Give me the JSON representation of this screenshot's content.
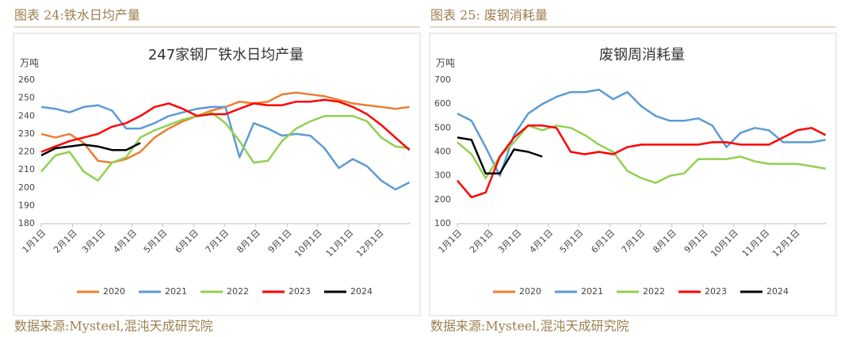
{
  "chart_data": [
    {
      "type": "line",
      "caption": "图表 24:铁水日均产量",
      "source": "数据来源:Mysteel,混沌天成研究院",
      "title": "247家钢厂铁水日均产量",
      "y_unit": "万吨",
      "grid": false,
      "x": [
        1,
        15,
        29,
        43,
        57,
        71,
        85,
        99,
        113,
        127,
        141,
        155,
        169,
        183,
        197,
        211,
        225,
        239,
        253,
        267,
        281,
        295,
        309,
        323,
        337,
        351,
        365
      ],
      "xlim": [
        1,
        366
      ],
      "xticks": [
        {
          "value": 1,
          "label": "1月1日"
        },
        {
          "value": 32,
          "label": "2月1日"
        },
        {
          "value": 60,
          "label": "3月1日"
        },
        {
          "value": 91,
          "label": "4月1日"
        },
        {
          "value": 121,
          "label": "5月1日"
        },
        {
          "value": 152,
          "label": "6月1日"
        },
        {
          "value": 182,
          "label": "7月1日"
        },
        {
          "value": 213,
          "label": "8月1日"
        },
        {
          "value": 244,
          "label": "9月1日"
        },
        {
          "value": 274,
          "label": "10月1日"
        },
        {
          "value": 305,
          "label": "11月1日"
        },
        {
          "value": 335,
          "label": "12月1日"
        }
      ],
      "ylim": [
        180,
        260
      ],
      "yticks": [
        180,
        190,
        200,
        210,
        220,
        230,
        240,
        250,
        260
      ],
      "series": [
        {
          "name": "2020",
          "color": "#ed7d31",
          "values": [
            230,
            228,
            230,
            225,
            215,
            214,
            216,
            220,
            228,
            233,
            237,
            240,
            243,
            245,
            248,
            247,
            248,
            252,
            253,
            252,
            251,
            249,
            247,
            246,
            245,
            244,
            245
          ]
        },
        {
          "name": "2021",
          "color": "#5b9bd5",
          "values": [
            245,
            244,
            242,
            245,
            246,
            243,
            233,
            233,
            236,
            240,
            242,
            244,
            245,
            245,
            217,
            236,
            233,
            229,
            230,
            229,
            222,
            211,
            216,
            212,
            204,
            199,
            203
          ]
        },
        {
          "name": "2022",
          "color": "#92d050",
          "values": [
            209,
            218,
            220,
            209,
            204,
            214,
            217,
            228,
            232,
            235,
            238,
            240,
            242,
            236,
            226,
            214,
            215,
            226,
            233,
            237,
            240,
            240,
            240,
            237,
            228,
            223,
            222
          ]
        },
        {
          "name": "2023",
          "color": "#ff0000",
          "values": [
            220,
            223,
            226,
            228,
            230,
            234,
            236,
            240,
            245,
            247,
            244,
            240,
            241,
            241,
            244,
            247,
            246,
            246,
            248,
            248,
            249,
            248,
            245,
            241,
            235,
            228,
            221
          ]
        },
        {
          "name": "2024",
          "color": "#000000",
          "values": [
            218,
            222,
            223,
            224,
            223,
            221,
            221,
            225,
            null,
            null,
            null,
            null,
            null,
            null,
            null,
            null,
            null,
            null,
            null,
            null,
            null,
            null,
            null,
            null,
            null,
            null,
            null
          ]
        }
      ]
    },
    {
      "type": "line",
      "caption": "图表 25: 废钢消耗量",
      "source": "数据来源:Mysteel,混沌天成研究院",
      "title": "废钢周消耗量",
      "y_unit": "万吨",
      "grid": false,
      "x": [
        1,
        15,
        29,
        43,
        57,
        71,
        85,
        99,
        113,
        127,
        141,
        155,
        169,
        183,
        197,
        211,
        225,
        239,
        253,
        267,
        281,
        295,
        309,
        323,
        337,
        351,
        365
      ],
      "xlim": [
        1,
        366
      ],
      "xticks": [
        {
          "value": 1,
          "label": "1月1日"
        },
        {
          "value": 32,
          "label": "2月1日"
        },
        {
          "value": 60,
          "label": "3月1日"
        },
        {
          "value": 91,
          "label": "4月1日"
        },
        {
          "value": 121,
          "label": "5月1日"
        },
        {
          "value": 152,
          "label": "6月1日"
        },
        {
          "value": 182,
          "label": "7月1日"
        },
        {
          "value": 213,
          "label": "8月1日"
        },
        {
          "value": 244,
          "label": "9月1日"
        },
        {
          "value": 274,
          "label": "10月1日"
        },
        {
          "value": 305,
          "label": "11月1日"
        },
        {
          "value": 335,
          "label": "12月1日"
        }
      ],
      "ylim": [
        100,
        700
      ],
      "yticks": [
        100,
        200,
        300,
        400,
        500,
        600,
        700
      ],
      "series": [
        {
          "name": "2020",
          "color": "#ed7d31",
          "values": [
            null,
            null,
            null,
            null,
            null,
            null,
            null,
            null,
            null,
            null,
            null,
            null,
            null,
            null,
            null,
            null,
            null,
            null,
            null,
            null,
            null,
            null,
            null,
            null,
            null,
            null,
            null
          ]
        },
        {
          "name": "2021",
          "color": "#5b9bd5",
          "values": [
            560,
            530,
            420,
            300,
            470,
            560,
            600,
            630,
            650,
            650,
            660,
            620,
            650,
            590,
            550,
            530,
            530,
            540,
            510,
            420,
            480,
            500,
            490,
            440,
            440,
            440,
            450
          ]
        },
        {
          "name": "2022",
          "color": "#92d050",
          "values": [
            440,
            390,
            290,
            380,
            440,
            510,
            490,
            510,
            500,
            470,
            430,
            400,
            320,
            290,
            270,
            300,
            310,
            370,
            370,
            370,
            380,
            360,
            350,
            350,
            350,
            340,
            330
          ]
        },
        {
          "name": "2023",
          "color": "#ff0000",
          "values": [
            280,
            210,
            230,
            380,
            460,
            510,
            510,
            500,
            400,
            390,
            400,
            390,
            420,
            430,
            430,
            430,
            430,
            430,
            440,
            440,
            430,
            430,
            430,
            460,
            490,
            500,
            470
          ]
        },
        {
          "name": "2024",
          "color": "#000000",
          "values": [
            460,
            450,
            310,
            310,
            410,
            400,
            380,
            null,
            null,
            null,
            null,
            null,
            null,
            null,
            null,
            null,
            null,
            null,
            null,
            null,
            null,
            null,
            null,
            null,
            null,
            null,
            null
          ]
        }
      ]
    }
  ]
}
